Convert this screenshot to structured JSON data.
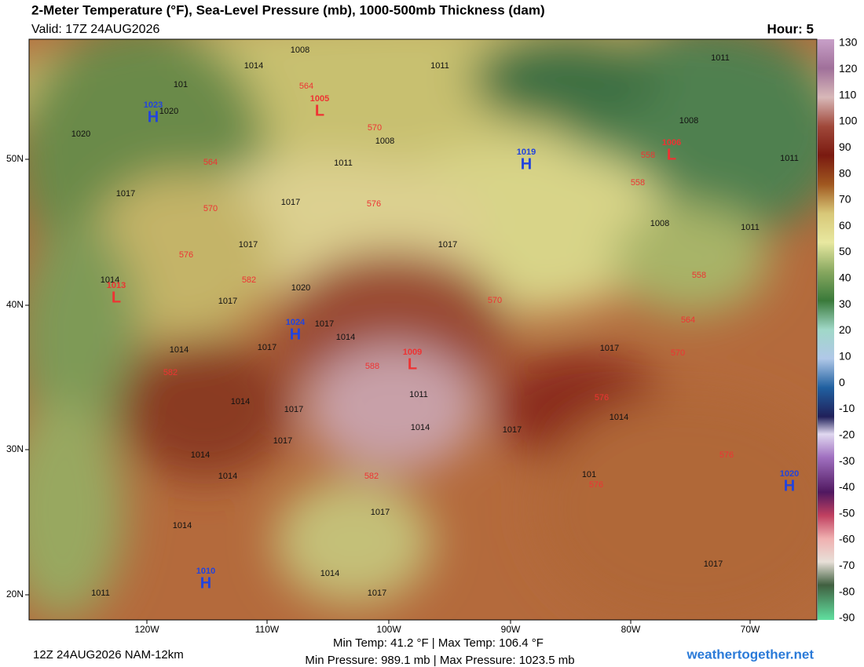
{
  "header": {
    "title": "2-Meter Temperature (°F), Sea-Level Pressure (mb), 1000-500mb Thickness (dam)",
    "valid": "Valid: 17Z 24AUG2026",
    "hour": "Hour: 5"
  },
  "map": {
    "lon_labels": [
      "120W",
      "110W",
      "100W",
      "90W",
      "80W",
      "70W"
    ],
    "lat_labels": [
      "50N",
      "40N",
      "30N",
      "20N"
    ],
    "pressure_systems": [
      {
        "letter": "H",
        "value": "1023"
      },
      {
        "letter": "L",
        "value": "1005"
      },
      {
        "letter": "H",
        "value": "1019"
      },
      {
        "letter": "L",
        "value": "1006"
      },
      {
        "letter": "L",
        "value": "1013"
      },
      {
        "letter": "H",
        "value": "1024"
      },
      {
        "letter": "L",
        "value": "1009"
      },
      {
        "letter": "H",
        "value": "1020"
      },
      {
        "letter": "H",
        "value": "1010"
      }
    ],
    "isobar_labels": [
      "1014",
      "1008",
      "1011",
      "1011",
      "101",
      "1020",
      "1020",
      "1008",
      "1011",
      "1008",
      "1011",
      "1017",
      "1017",
      "1008",
      "1011",
      "1017",
      "1017",
      "1014",
      "1020",
      "1017",
      "1017",
      "1014",
      "1017",
      "1014",
      "1017",
      "1011",
      "1014",
      "1017",
      "1014",
      "1014",
      "1017",
      "1017",
      "1014",
      "1014",
      "1017",
      "1014",
      "1011",
      "1017",
      "1014",
      "1017",
      "101"
    ],
    "thickness_labels": [
      "564",
      "570",
      "564",
      "570",
      "576",
      "576",
      "582",
      "558",
      "558",
      "570",
      "558",
      "564",
      "570",
      "588",
      "582",
      "576",
      "582",
      "576",
      "576"
    ]
  },
  "colorbar": {
    "ticks": [
      130,
      120,
      110,
      100,
      90,
      80,
      70,
      60,
      50,
      40,
      30,
      20,
      10,
      0,
      -10,
      -20,
      -30,
      -40,
      -50,
      -60,
      -70,
      -80,
      -90
    ]
  },
  "footer": {
    "run": "12Z 24AUG2026 NAM-12km",
    "temp": "Min Temp:  41.2 °F | Max Temp: 106.4 °F",
    "pressure": "Min Pressure: 989.1 mb | Max Pressure: 1023.5 mb",
    "site": "weathertogether.net"
  }
}
